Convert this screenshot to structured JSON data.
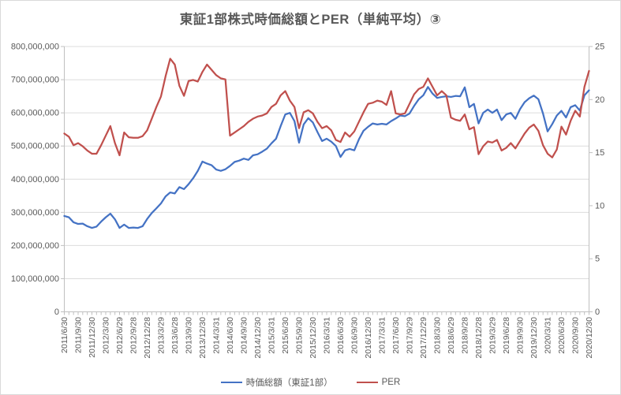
{
  "title": "東証1部株式時価総額とPER（単純平均）③",
  "colors": {
    "background": "#FFFFFF",
    "border": "#D9D9D9",
    "gridline": "#DCDCDC",
    "axis_line": "#C0C0C0",
    "text": "#595959",
    "series_market_cap": "#4472C4",
    "series_per": "#C0504D"
  },
  "legend": {
    "items": [
      {
        "label": "時価総額（東証1部）",
        "color": "#4472C4"
      },
      {
        "label": "PER",
        "color": "#C0504D"
      }
    ]
  },
  "chart_data": {
    "type": "line",
    "title": "東証1部株式時価総額とPER（単純平均）③",
    "grid": true,
    "legend_position": "bottom",
    "x_axis": {
      "points_per_label": 3,
      "tick_labels": [
        "2011/6/30",
        "2011/9/30",
        "2011/12/30",
        "2012/3/30",
        "2012/6/29",
        "2012/9/28",
        "2012/12/28",
        "2013/3/29",
        "2013/6/28",
        "2013/9/30",
        "2013/12/30",
        "2014/3/31",
        "2014/6/30",
        "2014/9/30",
        "2014/12/30",
        "2015/3/31",
        "2015/6/30",
        "2015/9/30",
        "2015/12/30",
        "2016/3/31",
        "2016/6/30",
        "2016/9/30",
        "2016/12/30",
        "2017/3/31",
        "2017/6/30",
        "2017/9/29",
        "2017/12/29",
        "2018/3/30",
        "2018/6/29",
        "2018/9/28",
        "2018/12/28",
        "2019/3/29",
        "2019/6/28",
        "2019/9/30",
        "2019/12/30",
        "2020/3/31",
        "2020/6/30",
        "2020/9/30",
        "2020/12/30"
      ]
    },
    "left_y_axis": {
      "min": 0,
      "max": 800000000,
      "step": 100000000,
      "tick_labels": [
        "0",
        "100,000,000",
        "200,000,000",
        "300,000,000",
        "400,000,000",
        "500,000,000",
        "600,000,000",
        "700,000,000",
        "800,000,000"
      ]
    },
    "right_y_axis": {
      "min": 0,
      "max": 25,
      "step": 5,
      "tick_labels": [
        "0",
        "5",
        "10",
        "15",
        "20",
        "25"
      ]
    },
    "series": [
      {
        "name": "時価総額（東証1部）",
        "axis": "left",
        "color": "#4472C4",
        "values": [
          289000000,
          285000000,
          270000000,
          265000000,
          266000000,
          258000000,
          253000000,
          257000000,
          272000000,
          285000000,
          296000000,
          279000000,
          253000000,
          263000000,
          253000000,
          254000000,
          253000000,
          258000000,
          280000000,
          298000000,
          312000000,
          327000000,
          348000000,
          360000000,
          357000000,
          376000000,
          370000000,
          385000000,
          403000000,
          425000000,
          453000000,
          447000000,
          442000000,
          429000000,
          425000000,
          430000000,
          440000000,
          452000000,
          456000000,
          462000000,
          458000000,
          472000000,
          475000000,
          483000000,
          492000000,
          508000000,
          522000000,
          560000000,
          595000000,
          600000000,
          575000000,
          510000000,
          565000000,
          584000000,
          571000000,
          542000000,
          515000000,
          522000000,
          513000000,
          500000000,
          467000000,
          487000000,
          491000000,
          487000000,
          520000000,
          546000000,
          558000000,
          568000000,
          565000000,
          567000000,
          565000000,
          575000000,
          583000000,
          592000000,
          590000000,
          598000000,
          621000000,
          641000000,
          653000000,
          678000000,
          658000000,
          645000000,
          648000000,
          650000000,
          648000000,
          651000000,
          650000000,
          677000000,
          617000000,
          627000000,
          568000000,
          600000000,
          610000000,
          600000000,
          610000000,
          578000000,
          595000000,
          600000000,
          582000000,
          611000000,
          632000000,
          644000000,
          652000000,
          641000000,
          598000000,
          544000000,
          566000000,
          592000000,
          606000000,
          586000000,
          617000000,
          623000000,
          607000000,
          653000000,
          668000000
        ]
      },
      {
        "name": "PER",
        "axis": "right",
        "color": "#C0504D",
        "values": [
          16.8,
          16.5,
          15.7,
          15.9,
          15.6,
          15.2,
          14.9,
          14.9,
          15.7,
          16.6,
          17.5,
          15.9,
          14.75,
          16.9,
          16.45,
          16.4,
          16.4,
          16.55,
          17.1,
          18.2,
          19.3,
          20.3,
          22.2,
          23.85,
          23.3,
          21.3,
          20.35,
          21.75,
          21.85,
          21.7,
          22.6,
          23.3,
          22.8,
          22.3,
          22.0,
          21.9,
          16.6,
          16.9,
          17.2,
          17.5,
          17.9,
          18.2,
          18.4,
          18.5,
          18.7,
          19.3,
          19.6,
          20.4,
          20.8,
          19.9,
          19.3,
          17.3,
          18.8,
          19.0,
          18.7,
          17.9,
          17.3,
          17.5,
          17.1,
          16.2,
          16.0,
          16.9,
          16.5,
          17.0,
          17.9,
          18.8,
          19.6,
          19.7,
          19.9,
          19.8,
          19.5,
          20.8,
          18.7,
          18.6,
          18.7,
          19.6,
          20.5,
          21.0,
          21.2,
          22.0,
          21.2,
          20.4,
          20.8,
          20.4,
          18.3,
          18.1,
          18.0,
          18.6,
          17.2,
          17.4,
          14.85,
          15.6,
          16.05,
          15.95,
          16.2,
          15.2,
          15.45,
          15.9,
          15.4,
          16.1,
          16.8,
          17.35,
          17.65,
          17.05,
          15.7,
          14.9,
          14.55,
          15.3,
          17.45,
          16.7,
          18.0,
          18.95,
          18.4,
          21.2,
          22.7
        ]
      }
    ]
  }
}
